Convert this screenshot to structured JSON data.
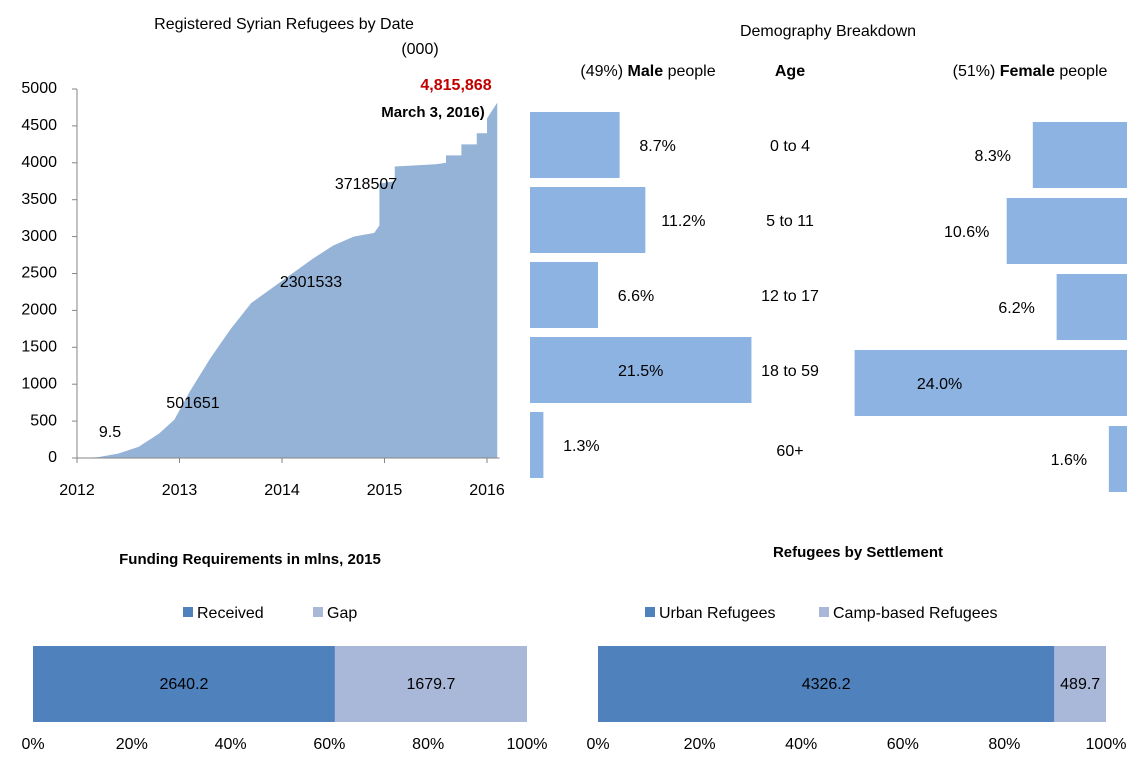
{
  "chart_data": [
    {
      "type": "area",
      "title": "Registered Syrian Refugees by Date",
      "subtitle": "(000)",
      "color": "#95b3d7",
      "x": [
        2012,
        2012.2,
        2012.4,
        2012.6,
        2012.8,
        2012.95,
        2013.1,
        2013.3,
        2013.5,
        2013.7,
        2013.9,
        2014.1,
        2014.3,
        2014.5,
        2014.7,
        2014.9,
        2014.95,
        2014.95,
        2015.1,
        2015.1,
        2015.5,
        2015.6,
        2015.6,
        2015.75,
        2015.75,
        2015.9,
        2015.9,
        2016.0,
        2016.0,
        2016.1
      ],
      "values": [
        0,
        10,
        60,
        150,
        330,
        520,
        900,
        1350,
        1750,
        2100,
        2300,
        2500,
        2700,
        2880,
        3000,
        3050,
        3150,
        3718.5,
        3750,
        3950,
        3980,
        4000,
        4100,
        4100,
        4250,
        4250,
        4400,
        4400,
        4600,
        4815.9
      ],
      "xlim": [
        2012,
        2016.2
      ],
      "xticks": [
        2012,
        2013,
        2014,
        2015,
        2016
      ],
      "ylim": [
        0,
        5000
      ],
      "yticks": [
        0,
        500,
        1000,
        1500,
        2000,
        2500,
        3000,
        3500,
        4000,
        4500,
        5000
      ],
      "annotations": [
        "9.5",
        "501651",
        "2301533",
        "3718507",
        "4,815,868",
        "March 3, 2016)"
      ]
    },
    {
      "type": "bar",
      "title": "Demography Breakdown",
      "male_header": {
        "share": "(49%)",
        "label": "Male",
        "suffix": "people"
      },
      "age_header": "Age",
      "female_header": {
        "share": "(51%)",
        "label": "Female",
        "suffix": "people"
      },
      "categories": [
        "0 to 4",
        "5 to 11",
        "12 to 17",
        "18 to 59",
        "60+"
      ],
      "series": [
        {
          "name": "Male",
          "color": "#8db3e2",
          "values": [
            8.7,
            11.2,
            6.6,
            21.5,
            1.3
          ],
          "value_labels": [
            "8.7%",
            "11.2%",
            "6.6%",
            "21.5%",
            "1.3%"
          ]
        },
        {
          "name": "Female",
          "color": "#8db3e2",
          "values": [
            8.3,
            10.6,
            6.2,
            24.0,
            1.6
          ],
          "value_labels": [
            "8.3%",
            "10.6%",
            "6.2%",
            "24.0%",
            "1.6%"
          ]
        }
      ]
    },
    {
      "type": "stacked_bar",
      "title": "Funding Requirements in mlns, 2015",
      "series": [
        {
          "name": "Received",
          "color": "#4f81bd",
          "values": [
            2640.2
          ]
        },
        {
          "name": "Gap",
          "color": "#a9b8d9",
          "values": [
            1679.7
          ]
        }
      ],
      "xlim": [
        0,
        100
      ],
      "xticks": [
        {
          "value": 0,
          "label": "0%"
        },
        {
          "value": 20,
          "label": "20%"
        },
        {
          "value": 40,
          "label": "40%"
        },
        {
          "value": 60,
          "label": "60%"
        },
        {
          "value": 80,
          "label": "80%"
        },
        {
          "value": 100,
          "label": "100%"
        }
      ]
    },
    {
      "type": "stacked_bar",
      "title": "Refugees by Settlement",
      "series": [
        {
          "name": "Urban Refugees",
          "color": "#4f81bd",
          "values": [
            4326.2
          ]
        },
        {
          "name": "Camp-based Refugees",
          "color": "#a9b8d9",
          "values": [
            489.7
          ]
        }
      ],
      "xlim": [
        0,
        100
      ],
      "xticks": [
        {
          "value": 0,
          "label": "0%"
        },
        {
          "value": 20,
          "label": "20%"
        },
        {
          "value": 40,
          "label": "40%"
        },
        {
          "value": 60,
          "label": "60%"
        },
        {
          "value": 80,
          "label": "80%"
        },
        {
          "value": 100,
          "label": "100%"
        }
      ]
    }
  ]
}
